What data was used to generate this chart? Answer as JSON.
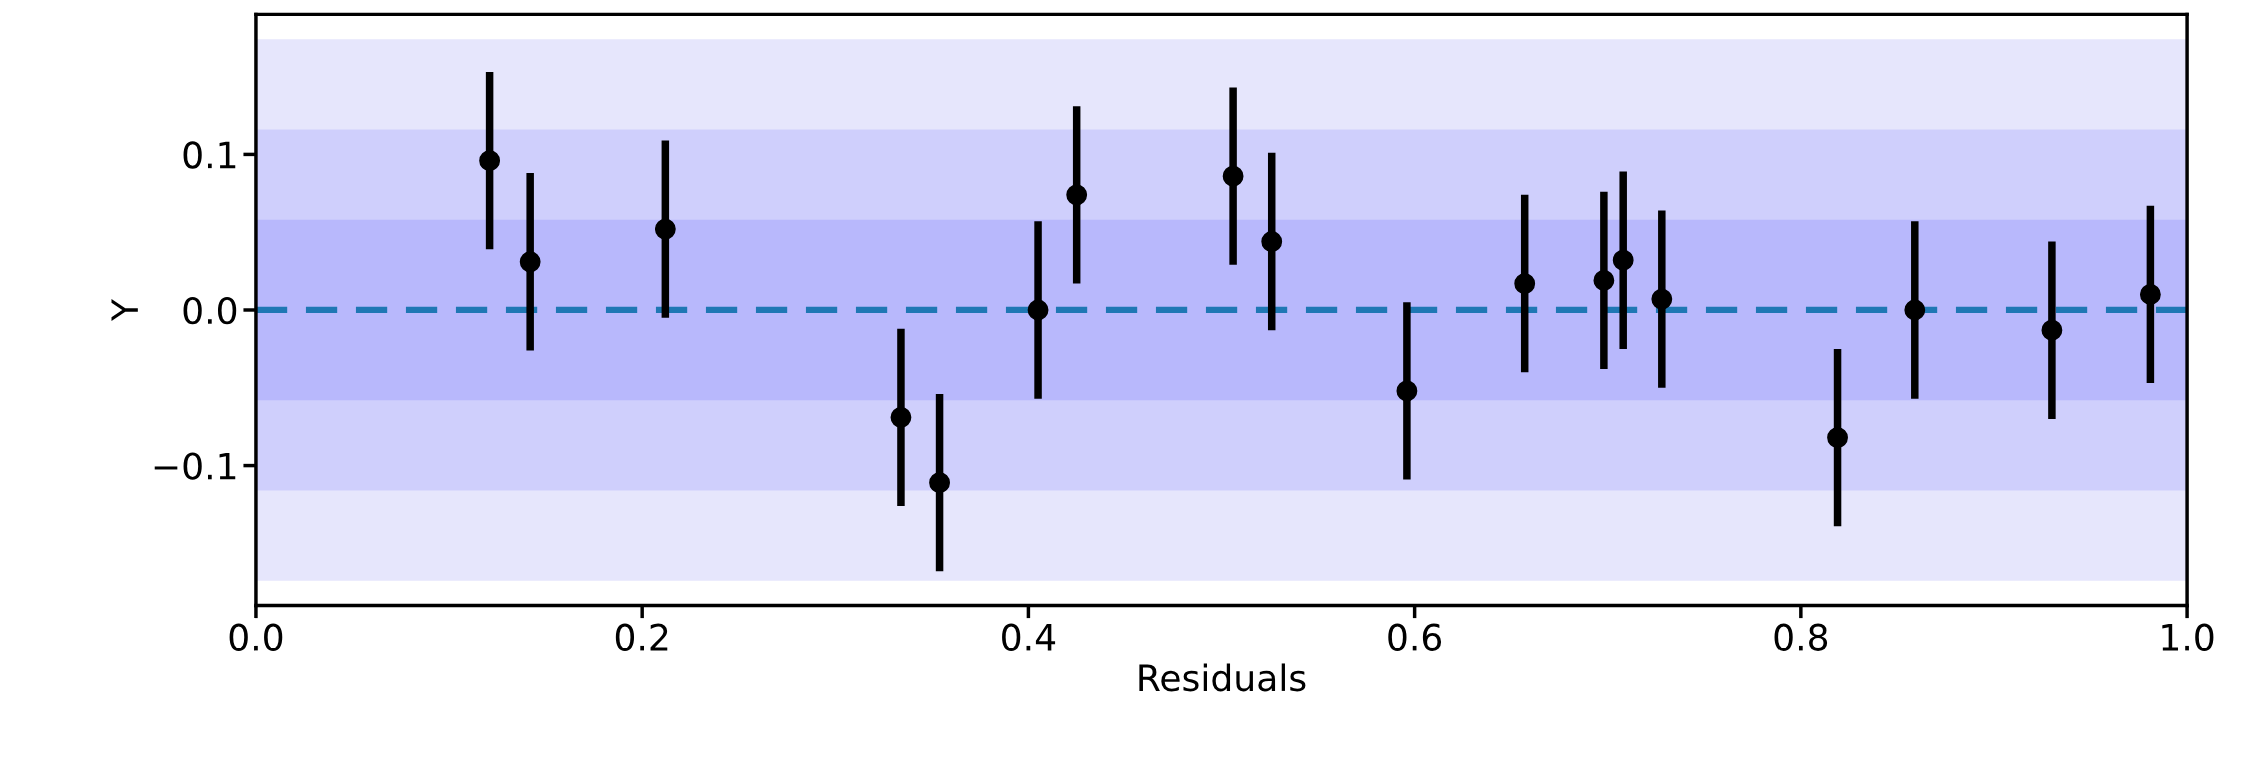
{
  "chart_data": {
    "type": "scatter",
    "xlabel": "Residuals",
    "ylabel": "Y",
    "x": [
      0.121,
      0.142,
      0.212,
      0.334,
      0.354,
      0.405,
      0.425,
      0.506,
      0.526,
      0.596,
      0.657,
      0.698,
      0.708,
      0.728,
      0.819,
      0.859,
      0.93,
      0.981
    ],
    "series": [
      {
        "color": "#000000",
        "values": [
          0.096,
          0.031,
          0.052,
          -0.069,
          -0.111,
          0.0,
          0.074,
          0.086,
          0.044,
          -0.052,
          0.017,
          0.019,
          0.032,
          0.007,
          -0.082,
          0.0,
          -0.013,
          0.01
        ],
        "errors": [
          0.057,
          0.057,
          0.057,
          0.057,
          0.057,
          0.057,
          0.057,
          0.057,
          0.057,
          0.057,
          0.057,
          0.057,
          0.057,
          0.057,
          0.057,
          0.057,
          0.057,
          0.057
        ]
      }
    ],
    "marker": "circle",
    "xlim": [
      0.0,
      1.0
    ],
    "xticks": [
      {
        "value": 0.0,
        "label": "0.0"
      },
      0.2,
      0.4,
      0.6,
      0.8,
      {
        "value": 1.0,
        "label": "1.0"
      }
    ],
    "ylim": [
      -0.19,
      0.19
    ],
    "yticks": [
      {
        "value": -0.1,
        "label": "−0.1"
      },
      {
        "value": 0.0,
        "label": "0.0"
      },
      0.1
    ],
    "bands": [
      {
        "axis": "y",
        "from": -0.174,
        "to": 0.174,
        "color": "#e6e6fc"
      },
      {
        "axis": "y",
        "from": -0.116,
        "to": 0.116,
        "color": "#cfcffc"
      },
      {
        "axis": "y",
        "from": -0.058,
        "to": 0.058,
        "color": "#b8b8fc"
      }
    ],
    "ref_lines": [
      {
        "axis": "y",
        "value": 0.0,
        "color": "#1f77b4",
        "line_style": "dashed"
      }
    ],
    "grid": false,
    "legend": false
  }
}
